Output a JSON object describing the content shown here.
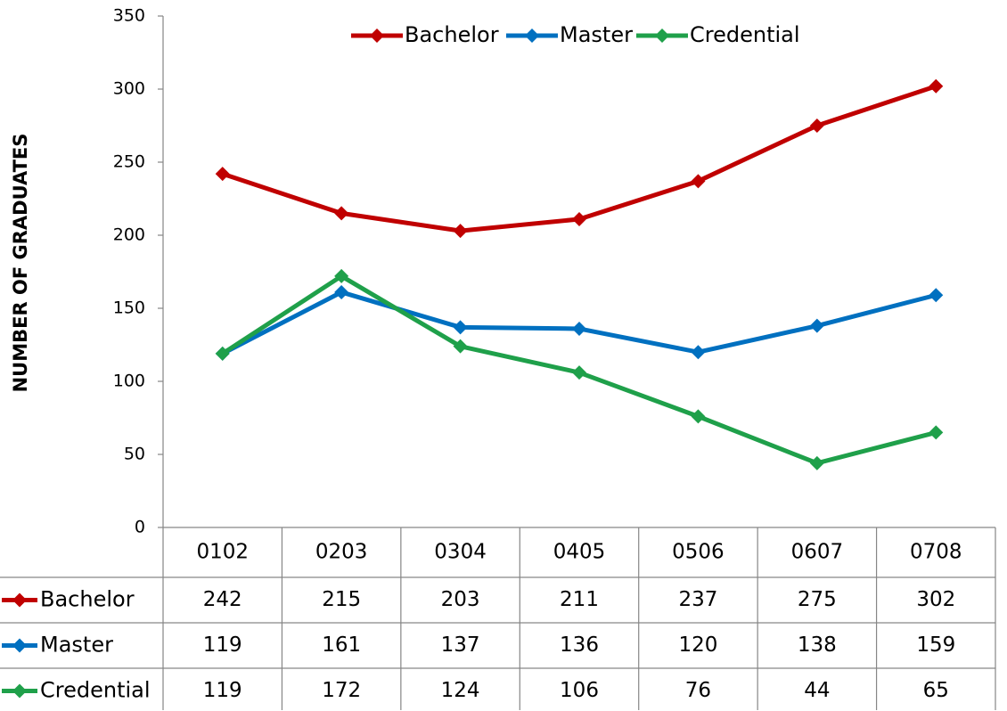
{
  "chart_data": {
    "type": "line",
    "y_label": "NUMBER OF GRADUATES",
    "categories": [
      "0102",
      "0203",
      "0304",
      "0405",
      "0506",
      "0607",
      "0708"
    ],
    "series": [
      {
        "name": "Bachelor",
        "color": "#c00000",
        "values": [
          242,
          215,
          203,
          211,
          237,
          275,
          302
        ]
      },
      {
        "name": "Master",
        "color": "#0070c0",
        "values": [
          119,
          161,
          137,
          136,
          120,
          138,
          159
        ]
      },
      {
        "name": "Credential",
        "color": "#1fa04a",
        "values": [
          119,
          172,
          124,
          106,
          76,
          44,
          65
        ]
      }
    ],
    "ylim": [
      0,
      350
    ],
    "yticks": [
      0,
      50,
      100,
      150,
      200,
      250,
      300,
      350
    ],
    "grid": false,
    "legend": "top",
    "data_table": true
  }
}
